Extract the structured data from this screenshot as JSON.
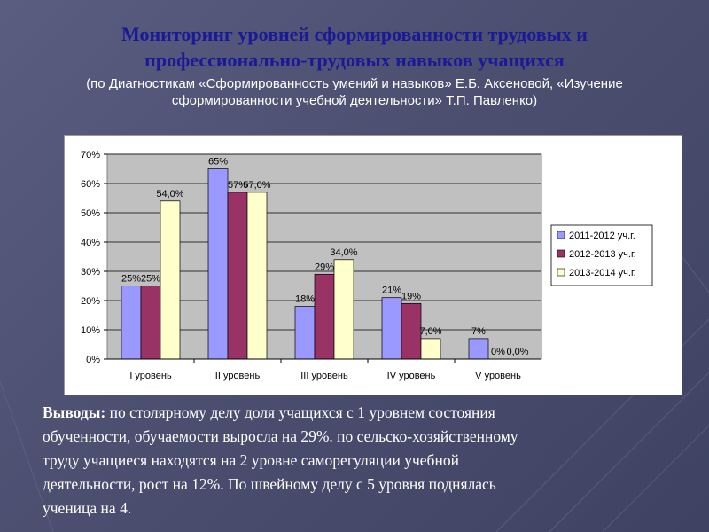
{
  "slide": {
    "title_line1": "Мониторинг уровней сформированности трудовых и",
    "title_line2": "профессионально-трудовых навыков учащихся",
    "subtitle_line1": "(по Диагностикам «Сформированность умений и навыков» Е.Б. Аксеновой, «Изучение",
    "subtitle_line2": "сформированности учебной деятельности» Т.П. Павленко)"
  },
  "conclusions": {
    "label": "Выводы:",
    "line1": " по столярному делу доля учащихся с 1 уровнем состояния",
    "line2": "обученности, обучаемости выросла на 29%. по сельско-хозяйственному",
    "line3": "труду  учащиеся находятся на 2 уровне саморегуляции учебной",
    "line4": "деятельности, рост на 12%. По швейному делу с 5 уровня поднялась",
    "line5": "ученица на 4."
  },
  "colors": {
    "series1": "#9999ff",
    "series2": "#993366",
    "series3": "#ffffcc",
    "plot_bg": "#c0c0c0",
    "title": "#1a1a99"
  },
  "chart_data": {
    "type": "bar",
    "title": "",
    "xlabel": "",
    "ylabel": "",
    "categories": [
      "I уровень",
      "II уровень",
      "III уровень",
      "IV уровень",
      "V уровень"
    ],
    "ylim": [
      0,
      70
    ],
    "yticks": [
      0,
      10,
      20,
      30,
      40,
      50,
      60,
      70
    ],
    "ytick_labels": [
      "0%",
      "10%",
      "20%",
      "30%",
      "40%",
      "50%",
      "60%",
      "70%"
    ],
    "grid": true,
    "legend_position": "right",
    "series": [
      {
        "name": "2011-2012 уч.г.",
        "values": [
          25,
          65,
          18,
          21,
          7
        ],
        "labels": [
          "25%",
          "65%",
          "18%",
          "21%",
          "7%"
        ]
      },
      {
        "name": "2012-2013 уч.г.",
        "values": [
          25,
          57,
          29,
          19,
          0
        ],
        "labels": [
          "25%",
          "57%",
          "29%",
          "19%",
          "0%"
        ]
      },
      {
        "name": "2013-2014 уч.г.",
        "values": [
          54,
          57,
          34,
          7,
          0
        ],
        "labels": [
          "54,0%",
          "57,0%",
          "34,0%",
          "7,0%",
          "0,0%"
        ]
      }
    ]
  }
}
